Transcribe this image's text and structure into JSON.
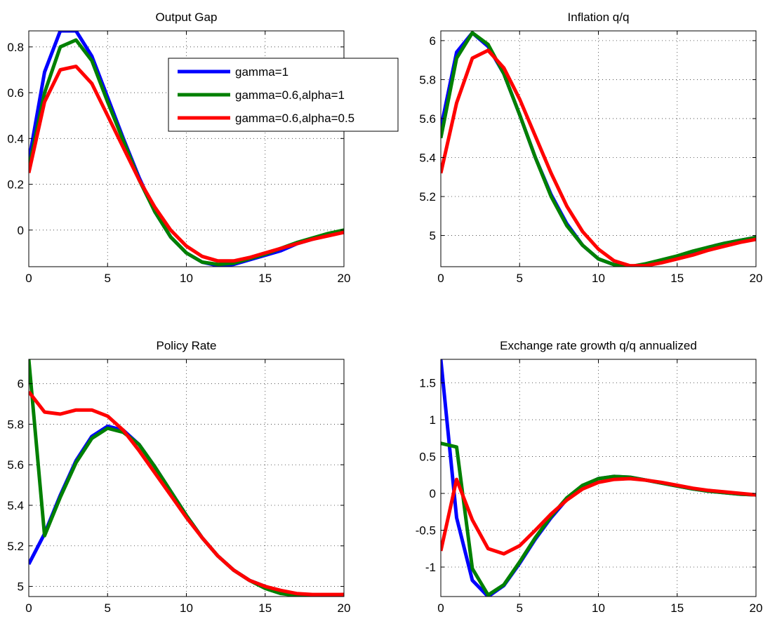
{
  "colors": {
    "gamma_1": "#0000ff",
    "gamma_06_alpha_1": "#008000",
    "gamma_06_alpha_05": "#ff0000"
  },
  "chart_data": [
    {
      "type": "line",
      "title": "Output Gap",
      "xlim": [
        0,
        20
      ],
      "ylim": [
        -0.16,
        0.87
      ],
      "xticks": [
        0,
        5,
        10,
        15,
        20
      ],
      "yticks": [
        0,
        0.2,
        0.4,
        0.6,
        0.8
      ],
      "xtick_labels": [
        "0",
        "5",
        "10",
        "15",
        "20"
      ],
      "ytick_labels": [
        "0",
        "0.2",
        "0.4",
        "0.6",
        "0.8"
      ],
      "grid": true,
      "legend": {
        "location": "top-right",
        "entries": [
          "gamma=1",
          "gamma=0.6,alpha=1",
          "gamma=0.6,alpha=0.5"
        ]
      },
      "series": [
        {
          "name": "gamma=1",
          "color": "#0000ff",
          "x": [
            0,
            1,
            2,
            3,
            4,
            5,
            6,
            7,
            8,
            9,
            10,
            11,
            12,
            13,
            14,
            15,
            16,
            17,
            18,
            19,
            20
          ],
          "y": [
            0.3,
            0.69,
            0.87,
            0.87,
            0.76,
            0.58,
            0.4,
            0.23,
            0.08,
            -0.03,
            -0.1,
            -0.14,
            -0.155,
            -0.15,
            -0.13,
            -0.11,
            -0.09,
            -0.06,
            -0.04,
            -0.02,
            -0.01
          ]
        },
        {
          "name": "gamma=0.6,alpha=1",
          "color": "#008000",
          "x": [
            0,
            1,
            2,
            3,
            4,
            5,
            6,
            7,
            8,
            9,
            10,
            11,
            12,
            13,
            14,
            15,
            16,
            17,
            18,
            19,
            20
          ],
          "y": [
            0.27,
            0.6,
            0.8,
            0.83,
            0.74,
            0.56,
            0.39,
            0.22,
            0.08,
            -0.03,
            -0.1,
            -0.14,
            -0.15,
            -0.145,
            -0.125,
            -0.105,
            -0.08,
            -0.055,
            -0.035,
            -0.015,
            0.0
          ]
        },
        {
          "name": "gamma=0.6,alpha=0.5",
          "color": "#ff0000",
          "x": [
            0,
            1,
            2,
            3,
            4,
            5,
            6,
            7,
            8,
            9,
            10,
            11,
            12,
            13,
            14,
            15,
            16,
            17,
            18,
            19,
            20
          ],
          "y": [
            0.25,
            0.56,
            0.7,
            0.715,
            0.64,
            0.5,
            0.36,
            0.22,
            0.1,
            0.0,
            -0.07,
            -0.115,
            -0.135,
            -0.135,
            -0.12,
            -0.1,
            -0.08,
            -0.06,
            -0.04,
            -0.025,
            -0.01
          ]
        }
      ]
    },
    {
      "type": "line",
      "title": "Inflation q/q",
      "xlim": [
        0,
        20
      ],
      "ylim": [
        4.84,
        6.05
      ],
      "xticks": [
        0,
        5,
        10,
        15,
        20
      ],
      "yticks": [
        5,
        5.2,
        5.4,
        5.6,
        5.8,
        6
      ],
      "xtick_labels": [
        "0",
        "5",
        "10",
        "15",
        "20"
      ],
      "ytick_labels": [
        "5",
        "5.2",
        "5.4",
        "5.6",
        "5.8",
        "6"
      ],
      "grid": true,
      "series": [
        {
          "name": "gamma=1",
          "color": "#0000ff",
          "x": [
            0,
            1,
            2,
            3,
            4,
            5,
            6,
            7,
            8,
            9,
            10,
            11,
            12,
            13,
            14,
            15,
            16,
            17,
            18,
            19,
            20
          ],
          "y": [
            5.55,
            5.94,
            6.04,
            5.97,
            5.83,
            5.62,
            5.4,
            5.21,
            5.06,
            4.95,
            4.88,
            4.85,
            4.84,
            4.85,
            4.87,
            4.89,
            4.915,
            4.94,
            4.96,
            4.975,
            4.99
          ]
        },
        {
          "name": "gamma=0.6,alpha=1",
          "color": "#008000",
          "x": [
            0,
            1,
            2,
            3,
            4,
            5,
            6,
            7,
            8,
            9,
            10,
            11,
            12,
            13,
            14,
            15,
            16,
            17,
            18,
            19,
            20
          ],
          "y": [
            5.5,
            5.91,
            6.04,
            5.98,
            5.83,
            5.62,
            5.4,
            5.2,
            5.05,
            4.95,
            4.88,
            4.85,
            4.84,
            4.855,
            4.875,
            4.895,
            4.92,
            4.94,
            4.96,
            4.975,
            4.99
          ]
        },
        {
          "name": "gamma=0.6,alpha=0.5",
          "color": "#ff0000",
          "x": [
            0,
            1,
            2,
            3,
            4,
            5,
            6,
            7,
            8,
            9,
            10,
            11,
            12,
            13,
            14,
            15,
            16,
            17,
            18,
            19,
            20
          ],
          "y": [
            5.32,
            5.68,
            5.91,
            5.95,
            5.86,
            5.7,
            5.51,
            5.32,
            5.15,
            5.02,
            4.93,
            4.87,
            4.845,
            4.845,
            4.86,
            4.88,
            4.9,
            4.925,
            4.945,
            4.965,
            4.98
          ]
        }
      ]
    },
    {
      "type": "line",
      "title": "Policy Rate",
      "xlim": [
        0,
        20
      ],
      "ylim": [
        4.95,
        6.12
      ],
      "xticks": [
        0,
        5,
        10,
        15,
        20
      ],
      "yticks": [
        5,
        5.2,
        5.4,
        5.6,
        5.8,
        6
      ],
      "xtick_labels": [
        "0",
        "5",
        "10",
        "15",
        "20"
      ],
      "ytick_labels": [
        "5",
        "5.2",
        "5.4",
        "5.6",
        "5.8",
        "6"
      ],
      "grid": true,
      "series": [
        {
          "name": "gamma=1",
          "color": "#0000ff",
          "x": [
            0,
            1,
            2,
            3,
            4,
            5,
            6,
            7,
            8,
            9,
            10,
            11,
            12,
            13,
            14,
            15,
            16,
            17,
            18,
            19,
            20
          ],
          "y": [
            5.11,
            5.26,
            5.45,
            5.62,
            5.74,
            5.79,
            5.77,
            5.7,
            5.59,
            5.47,
            5.35,
            5.24,
            5.15,
            5.08,
            5.03,
            5.0,
            4.975,
            4.96,
            4.955,
            4.955,
            4.96
          ]
        },
        {
          "name": "gamma=0.6,alpha=1",
          "color": "#008000",
          "x": [
            0,
            1,
            2,
            3,
            4,
            5,
            6,
            7,
            8,
            9,
            10,
            11,
            12,
            13,
            14,
            15,
            16,
            17,
            18,
            19,
            20
          ],
          "y": [
            6.12,
            5.25,
            5.44,
            5.61,
            5.73,
            5.78,
            5.76,
            5.7,
            5.59,
            5.47,
            5.35,
            5.24,
            5.15,
            5.08,
            5.03,
            4.99,
            4.965,
            4.955,
            4.955,
            4.955,
            4.96
          ]
        },
        {
          "name": "gamma=0.6,alpha=0.5",
          "color": "#ff0000",
          "x": [
            0,
            1,
            2,
            3,
            4,
            5,
            6,
            7,
            8,
            9,
            10,
            11,
            12,
            13,
            14,
            15,
            16,
            17,
            18,
            19,
            20
          ],
          "y": [
            5.96,
            5.86,
            5.85,
            5.87,
            5.87,
            5.84,
            5.77,
            5.67,
            5.56,
            5.45,
            5.34,
            5.24,
            5.15,
            5.08,
            5.03,
            5.0,
            4.98,
            4.965,
            4.96,
            4.96,
            4.96
          ]
        }
      ]
    },
    {
      "type": "line",
      "title": "Exchange rate growth q/q annualized",
      "xlim": [
        0,
        20
      ],
      "ylim": [
        -1.4,
        1.82
      ],
      "xticks": [
        0,
        5,
        10,
        15,
        20
      ],
      "yticks": [
        -1,
        -0.5,
        0,
        0.5,
        1,
        1.5
      ],
      "xtick_labels": [
        "0",
        "5",
        "10",
        "15",
        "20"
      ],
      "ytick_labels": [
        "-1",
        "-0.5",
        "0",
        "0.5",
        "1",
        "1.5"
      ],
      "grid": true,
      "series": [
        {
          "name": "gamma=1",
          "color": "#0000ff",
          "x": [
            0,
            1,
            2,
            3,
            4,
            5,
            6,
            7,
            8,
            9,
            10,
            11,
            12,
            13,
            14,
            15,
            16,
            17,
            18,
            19,
            20
          ],
          "y": [
            1.82,
            -0.33,
            -1.18,
            -1.4,
            -1.25,
            -0.95,
            -0.62,
            -0.33,
            -0.08,
            0.1,
            0.2,
            0.23,
            0.22,
            0.18,
            0.14,
            0.1,
            0.06,
            0.03,
            0.01,
            -0.01,
            -0.02
          ]
        },
        {
          "name": "gamma=0.6,alpha=1",
          "color": "#008000",
          "x": [
            0,
            1,
            2,
            3,
            4,
            5,
            6,
            7,
            8,
            9,
            10,
            11,
            12,
            13,
            14,
            15,
            16,
            17,
            18,
            19,
            20
          ],
          "y": [
            0.68,
            0.63,
            -1.02,
            -1.38,
            -1.24,
            -0.93,
            -0.6,
            -0.31,
            -0.06,
            0.11,
            0.2,
            0.23,
            0.22,
            0.18,
            0.14,
            0.1,
            0.06,
            0.03,
            0.01,
            -0.01,
            -0.02
          ]
        },
        {
          "name": "gamma=0.6,alpha=0.5",
          "color": "#ff0000",
          "x": [
            0,
            1,
            2,
            3,
            4,
            5,
            6,
            7,
            8,
            9,
            10,
            11,
            12,
            13,
            14,
            15,
            16,
            17,
            18,
            19,
            20
          ],
          "y": [
            -0.78,
            0.19,
            -0.36,
            -0.75,
            -0.82,
            -0.71,
            -0.5,
            -0.28,
            -0.09,
            0.06,
            0.15,
            0.19,
            0.2,
            0.18,
            0.15,
            0.11,
            0.07,
            0.04,
            0.02,
            0.0,
            -0.02
          ]
        }
      ]
    }
  ]
}
